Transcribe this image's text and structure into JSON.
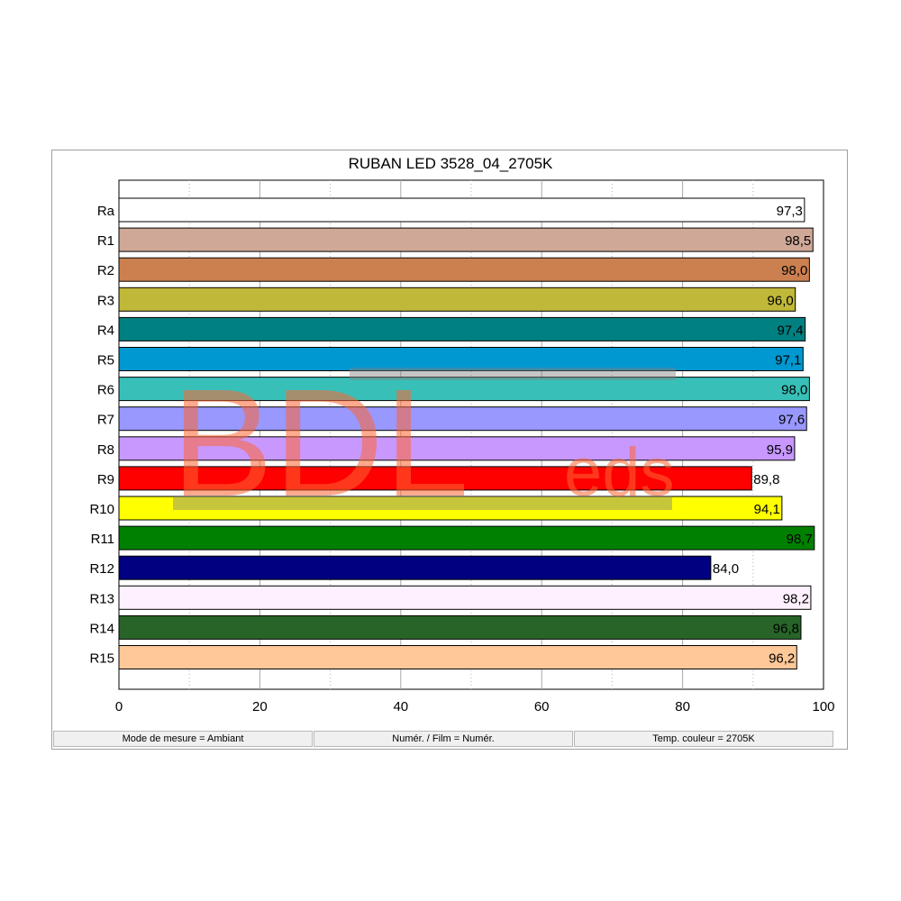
{
  "chart_data": {
    "type": "bar",
    "orientation": "horizontal",
    "title": "RUBAN LED 3528_04_2705K",
    "categories": [
      "Ra",
      "R1",
      "R2",
      "R3",
      "R4",
      "R5",
      "R6",
      "R7",
      "R8",
      "R9",
      "R10",
      "R11",
      "R12",
      "R13",
      "R14",
      "R15"
    ],
    "values": [
      97.3,
      98.5,
      98.0,
      96.0,
      97.4,
      97.1,
      98.0,
      97.6,
      95.9,
      89.8,
      94.1,
      98.7,
      84.0,
      98.2,
      96.8,
      96.2
    ],
    "value_labels": [
      "97,3",
      "98,5",
      "98,0",
      "96,0",
      "97,4",
      "97,1",
      "98,0",
      "97,6",
      "95,9",
      "89,8",
      "94,1",
      "98,7",
      "84,0",
      "98,2",
      "96,8",
      "96,2"
    ],
    "colors": [
      "#ffffff",
      "#d0a898",
      "#cc8050",
      "#c0b838",
      "#008080",
      "#0098d0",
      "#38c0b8",
      "#9898ff",
      "#c898ff",
      "#ff0000",
      "#ffff00",
      "#008000",
      "#000080",
      "#fff0ff",
      "#286428",
      "#ffc898"
    ],
    "xlim": [
      0,
      100
    ],
    "xticks": [
      0,
      20,
      40,
      60,
      80,
      100
    ],
    "xlabel": "",
    "ylabel": "",
    "grid": "vertical"
  },
  "statusbar": {
    "mode": "Mode de mesure = Ambiant",
    "film": "Numér. / Film = Numér.",
    "temp": "Temp. couleur = 2705K"
  },
  "watermark": {
    "main": "BDL",
    "suffix": "eds",
    "color": "#ff6633"
  }
}
